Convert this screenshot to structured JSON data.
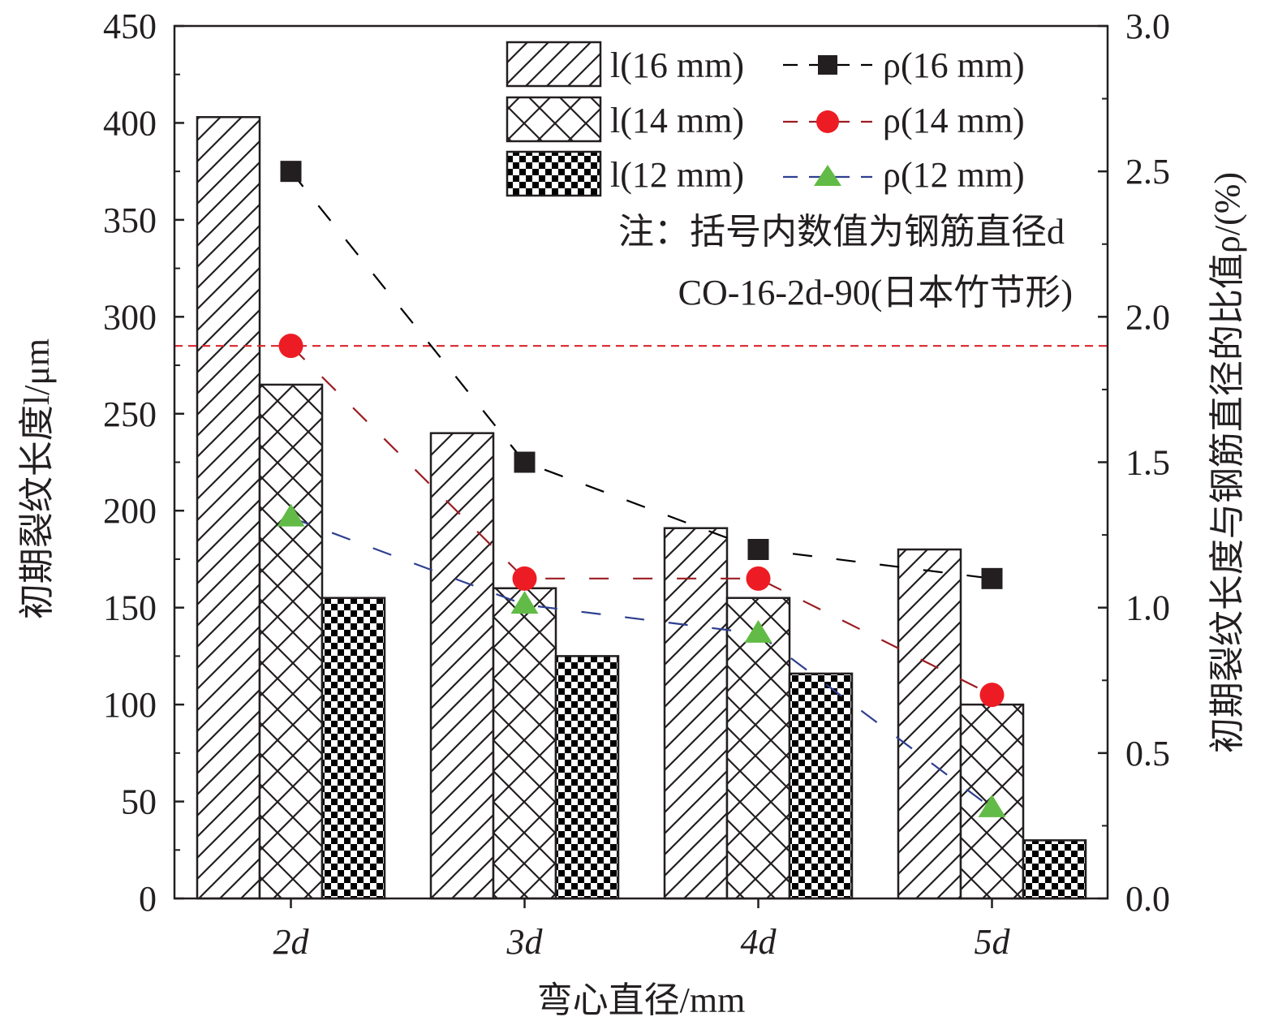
{
  "chart_data": {
    "type": "bar",
    "categories": [
      "2d",
      "3d",
      "4d",
      "5d"
    ],
    "xlabel": "弯心直径/mm",
    "ylabel_left": "初期裂纹长度l/μm",
    "ylabel_right": "初期裂纹长度与钢筋直径的比值ρ/(%)",
    "ylim_left": [
      0,
      450
    ],
    "ylim_right": [
      0,
      3.0
    ],
    "yticks_left": [
      "0",
      "50",
      "100",
      "150",
      "200",
      "250",
      "300",
      "350",
      "400",
      "450"
    ],
    "yticks_right": [
      "0.0",
      "0.5",
      "1.0",
      "1.5",
      "2.0",
      "2.5",
      "3.0"
    ],
    "bar_series": [
      {
        "name": "l(16 mm)",
        "pattern": "diagonal-hatch",
        "values": [
          403,
          240,
          191,
          180
        ]
      },
      {
        "name": "l(14 mm)",
        "pattern": "cross-hatch",
        "values": [
          265,
          160,
          155,
          100
        ]
      },
      {
        "name": "l(12 mm)",
        "pattern": "checker",
        "values": [
          155,
          125,
          116,
          30
        ]
      }
    ],
    "line_series": [
      {
        "name": "ρ(16 mm)",
        "marker": "square",
        "color": "#000000",
        "values": [
          2.5,
          1.5,
          1.2,
          1.1
        ]
      },
      {
        "name": "ρ(14 mm)",
        "marker": "circle",
        "color": "#ed1c24",
        "values": [
          1.9,
          1.1,
          1.1,
          0.7
        ]
      },
      {
        "name": "ρ(12 mm)",
        "marker": "triangle",
        "color": "#62bb46",
        "line_color": "#2e3f8f",
        "values": [
          1.31,
          1.01,
          0.91,
          0.31
        ]
      }
    ],
    "reference_line": {
      "axis": "right",
      "value": 1.9,
      "color": "#d7262b",
      "style": "dashed"
    },
    "legend_position": "top-right",
    "note": [
      "注：括号内数值为钢筋直径d",
      "CO-16-2d-90(日本竹节形)"
    ]
  }
}
